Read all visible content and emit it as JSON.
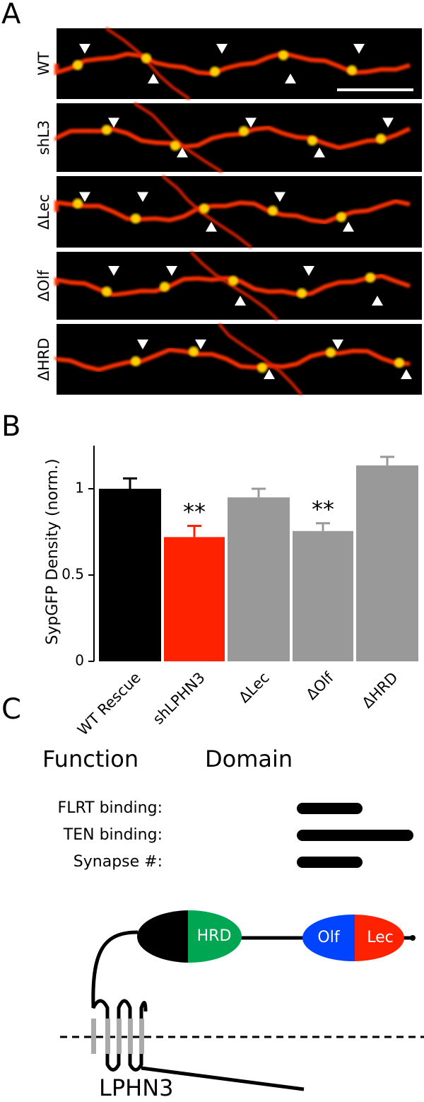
{
  "panel_labels": [
    "A",
    "B",
    "C"
  ],
  "panel_a": {
    "rows": [
      "WT",
      "shL3",
      "ΔLec",
      "ΔOlf",
      "ΔHRD"
    ]
  },
  "chart_data": {
    "type": "bar",
    "y_label": "SypGFP Density (norm.)",
    "categories": [
      "WT Rescue",
      "shLPHN3",
      "ΔLec",
      "ΔOlf",
      "ΔHRD"
    ],
    "values": [
      1.0,
      0.72,
      0.95,
      0.755,
      1.135
    ],
    "errors": [
      0.06,
      0.065,
      0.05,
      0.045,
      0.05
    ],
    "colors": [
      "#000000",
      "#ff2200",
      "#999999",
      "#999999",
      "#999999"
    ],
    "value_annotations": [
      null,
      "**",
      null,
      "**",
      null
    ],
    "ylim": [
      0,
      1.25
    ],
    "yticks": [
      0,
      0.5,
      1
    ]
  },
  "panel_c": {
    "function_header": "Function",
    "domain_header": "Domain",
    "functions": [
      "FLRT binding:",
      "TEN binding:",
      "Synapse #:"
    ],
    "domains": [
      "HRD",
      "Olf",
      "Lec"
    ],
    "protein": "LPHN3"
  }
}
